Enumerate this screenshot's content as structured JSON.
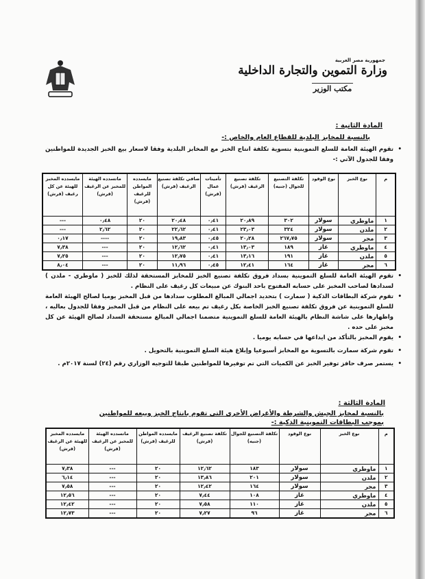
{
  "header": {
    "country": "جمهورية مصر العربية",
    "ministry": "وزارة التموين والتجارة الداخلية",
    "office": "مكتب الوزير"
  },
  "article2": {
    "title": "المادة الثانية :",
    "subtitle": "بالنسبة للمخابز البلدية للقطاع العام والخاص :-",
    "intro": "تقوم الهيئة العامة للسلع التموينية بتسوية تكلفة انتاج الخبز مع المخابز البلدية وفقا لاسعار بيع الخبز الجديدة للمواطنين وفقا للجدول الآتي :-",
    "table": {
      "headers": [
        "م",
        "نوع الخبز",
        "نوع الوقود",
        "تكلفة التصنيع للجوال (جنيه)",
        "تكلفة تصنيع الرغيف (قرش)",
        "تأمينات عمال (قرش)",
        "صافي تكلفة تصنيع الرغيف (قرش)",
        "مايسدده المواطن للرغيف (قرش)",
        "ماتسدده الهيئة للمخبز عن الرغيف (قرش)",
        "مايسدده المخبز للهيئة عن كل رغيف (قرش)"
      ],
      "rows": [
        [
          "١",
          "ماوطري",
          "سولار",
          "٣٠٢",
          "٢٠٫٨٩",
          "٠٫٤١",
          "٢٠٫٤٨",
          "٢٠",
          "٠٫٤٨",
          "---"
        ],
        [
          "٢",
          "ملدن",
          "سولار",
          "٣٢٤",
          "٢٣٫٠٣",
          "٠٫٤١",
          "٢٢٫٦٢",
          "٢٠",
          "٢٫٦٢",
          "---"
        ],
        [
          "٣",
          "مجر",
          "سولار",
          "٢٦٧٫٧٥",
          "٢٠٫٢٨",
          "٠٫٤٥",
          "١٩٫٨٣",
          "٢٠",
          "----",
          "٠٫١٧"
        ],
        [
          "٤",
          "ماوطري",
          "غاز",
          "١٨٩",
          "١٣٫٠٣",
          "٠٫٤١",
          "١٢٫٦٢",
          "٢٠",
          "---",
          "٧٫٣٨"
        ],
        [
          "٥",
          "ملدن",
          "غاز",
          "١٩١",
          "١٣٫١٦",
          "٠٫٤١",
          "١٢٫٧٥",
          "٢٠",
          "---",
          "٧٫٢٥"
        ],
        [
          "٦",
          "مجر",
          "غاز",
          "١٦٤",
          "١٢٫٤١",
          "٠٫٤٥",
          "١١٫٩٦",
          "٢٠",
          "---",
          "٨٫٠٤"
        ]
      ]
    },
    "bullets": [
      "تقوم الهيئة العامة للسلع التموينية بسداد فروق تكلفة تصنيع الخبز للمخابز المستحقة لذلك للخبز ( ماوطري - ملدن ) لسدادها لصاحب المخبز على حسابه المفتوح باحد البنوك عن مبيعات كل رغيف على النظام .",
      "تقوم شركة البطاقات الذكية ( سمارت ) بتحديد اجمالي المبالغ المطلوب سدادها من قبل المخبز يوميا لصالح الهيئة العامة للسلع التموينية عن فروق تكلفة تصنيع الخبز الخاصة بكل رغيف تم بيعه على النظام من قبل المخبز وفقا للجدول بعاليه ، واظهارها على شاشة النظام بالهيئة العامة للسلع التموينية متضمنا اجمالي المبالغ مستحقة السداد لصالح الهيئة عن كل مخبز على حده .",
      "يقوم المخبز بالتأكد من ايداعها في حسابه يوميا .",
      "تقوم شركة سمارت بالتسوية مع المخابز أسبوعيا وإبلاغ هيئة السلع التموينية بالتحويل .",
      "يستمر صرف حافز توفير الخبز عن الكميات التي تم توفيرها للمواطنين طبقا للتوجيه الوزاري رقم (٢٤) لسنة ٢٠١٧م ."
    ]
  },
  "article3": {
    "title": "المادة الثالثة :",
    "subtitle": "بالنسبة لمخابز الجيش والشرطة والأغراض الأخرى التي تقوم بانتاج الخبز وبيعه للمواطنين بموجب البطاقات التموينية الذكية :-",
    "table": {
      "headers": [
        "م",
        "نوع الخبز",
        "نوع الوقود",
        "تكلفة التصنيع للجوال (جنيه)",
        "تكلفة تصنيع الرغيف (قرش)",
        "مايسدده المواطن للرغيف (قرش)",
        "ماتسدده الهيئة للمخبز عن الرغيف (قرش)",
        "مايسدده المخبز للهيئة عن الرغيف (قرش)"
      ],
      "rows": [
        [
          "١",
          "ماوطري",
          "سولار",
          "١٨٣",
          "١٢٫٦٢",
          "٢٠",
          "---",
          "٧٫٣٨"
        ],
        [
          "٢",
          "ملدن",
          "سولار",
          "٢٠١",
          "١٣٫٨٦",
          "٢٠",
          "---",
          "٦٫١٤"
        ],
        [
          "٣",
          "مجر",
          "سولار",
          "١٦٤",
          "١٢٫٤٢",
          "٢٠",
          "---",
          "٧٫٥٨"
        ],
        [
          "٤",
          "ماوطري",
          "غاز",
          "١٠٨",
          "٧٫٤٤",
          "٢٠",
          "---",
          "١٢٫٥٦"
        ],
        [
          "٥",
          "ملدن",
          "غاز",
          "١١٠",
          "٧٫٥٨",
          "٢٠",
          "---",
          "١٢٫٤٢"
        ],
        [
          "٦",
          "مجر",
          "غاز",
          "٩٦",
          "٧٫٢٧",
          "٢٠",
          "---",
          "١٢٫٧٣"
        ]
      ]
    }
  }
}
